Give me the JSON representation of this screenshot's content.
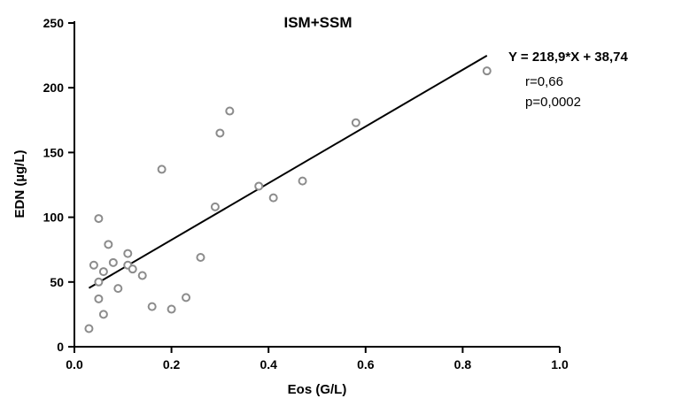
{
  "chart_data": {
    "type": "scatter",
    "title": "ISM+SSM",
    "xlabel": "Eos (G/L)",
    "ylabel": "EDN (µg/L)",
    "xlim": [
      0.0,
      1.0
    ],
    "ylim": [
      0,
      250
    ],
    "xticks": [
      0.0,
      0.2,
      0.4,
      0.6,
      0.8,
      1.0
    ],
    "xtick_labels": [
      "0.0",
      "0.2",
      "0.4",
      "0.6",
      "0.8",
      "1.0"
    ],
    "yticks": [
      0,
      50,
      100,
      150,
      200,
      250
    ],
    "ytick_labels": [
      "0",
      "50",
      "100",
      "150",
      "200",
      "250"
    ],
    "grid": false,
    "points": [
      {
        "x": 0.03,
        "y": 14
      },
      {
        "x": 0.04,
        "y": 63
      },
      {
        "x": 0.05,
        "y": 99
      },
      {
        "x": 0.05,
        "y": 50
      },
      {
        "x": 0.05,
        "y": 37
      },
      {
        "x": 0.06,
        "y": 58
      },
      {
        "x": 0.06,
        "y": 25
      },
      {
        "x": 0.07,
        "y": 79
      },
      {
        "x": 0.08,
        "y": 65
      },
      {
        "x": 0.09,
        "y": 45
      },
      {
        "x": 0.11,
        "y": 72
      },
      {
        "x": 0.11,
        "y": 63
      },
      {
        "x": 0.12,
        "y": 60
      },
      {
        "x": 0.14,
        "y": 55
      },
      {
        "x": 0.16,
        "y": 31
      },
      {
        "x": 0.18,
        "y": 137
      },
      {
        "x": 0.2,
        "y": 29
      },
      {
        "x": 0.23,
        "y": 38
      },
      {
        "x": 0.26,
        "y": 69
      },
      {
        "x": 0.29,
        "y": 108
      },
      {
        "x": 0.3,
        "y": 165
      },
      {
        "x": 0.32,
        "y": 182
      },
      {
        "x": 0.38,
        "y": 124
      },
      {
        "x": 0.41,
        "y": 115
      },
      {
        "x": 0.47,
        "y": 128
      },
      {
        "x": 0.58,
        "y": 173
      },
      {
        "x": 0.85,
        "y": 213
      }
    ],
    "regression": {
      "slope": 218.9,
      "intercept": 38.74,
      "x_range": [
        0.03,
        0.85
      ],
      "equation": "Y = 218,9*X + 38,74",
      "r_text": "r=0,66",
      "p_text": "p=0,0002"
    },
    "colors": {
      "marker": "#8c8c8c",
      "line": "#000000",
      "axis": "#000000"
    }
  }
}
